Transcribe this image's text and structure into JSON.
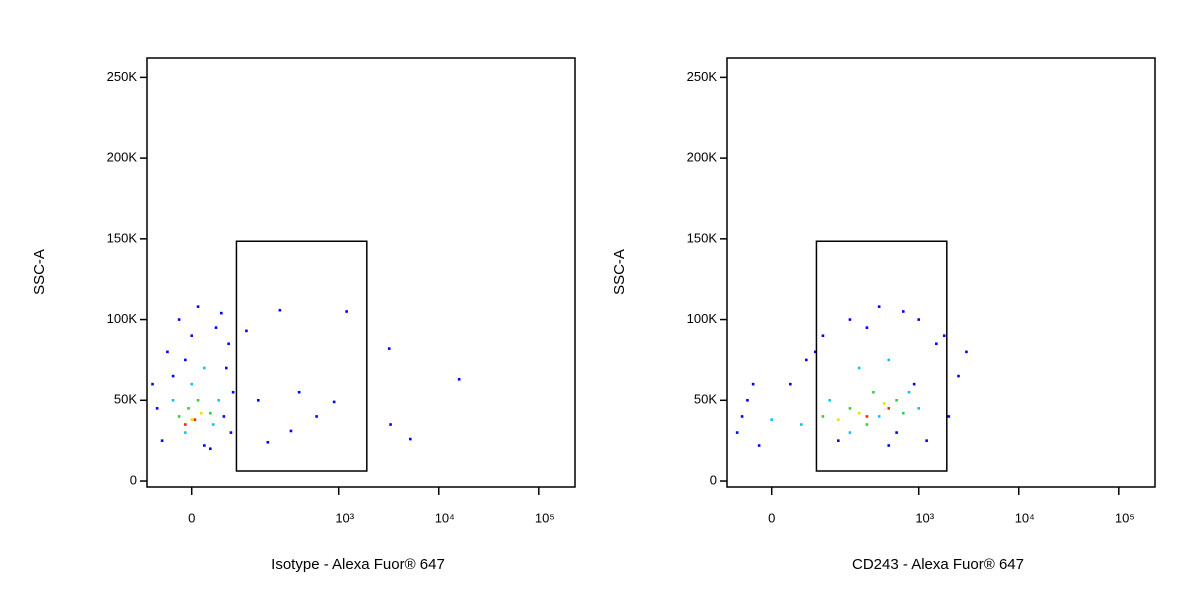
{
  "chart_data": [
    {
      "type": "scatter",
      "xlabel": "Isotype - Alexa Fuor® 647",
      "ylabel": "SSC-A",
      "xscale": "biexponential",
      "xlim": [
        -83,
        230000
      ],
      "ylim": [
        -3700,
        262000
      ],
      "xticks": [
        0,
        {
          "value": 1000,
          "label": "10³"
        },
        {
          "value": 10000,
          "label": "10⁴"
        },
        {
          "value": 100000,
          "label": "10⁵"
        }
      ],
      "yticks": [
        0,
        {
          "value": 50000,
          "label": "50K"
        },
        {
          "value": 100000,
          "label": "100K"
        },
        {
          "value": 150000,
          "label": "150K"
        },
        {
          "value": 200000,
          "label": "200K"
        },
        {
          "value": 250000,
          "label": "250K"
        }
      ],
      "gate": {
        "x": [
          83,
          1910
        ],
        "y": [
          6200,
          148500
        ]
      },
      "series": [
        {
          "color": "#0000ff",
          "x": [
            -60,
            -40,
            -20,
            10,
            40,
            60,
            75,
            -50,
            30,
            70,
            -70,
            0,
            50,
            -30,
            65,
            20,
            -10,
            55,
            254,
            1200,
            3200,
            16000,
            150,
            400,
            3300,
            5200,
            600,
            900,
            330,
            190,
            110
          ],
          "y": [
            45000,
            80000,
            100000,
            108000,
            95000,
            70000,
            55000,
            25000,
            20000,
            30000,
            60000,
            90000,
            104000,
            65000,
            85000,
            22000,
            75000,
            40000,
            105800,
            105000,
            82000,
            63000,
            50000,
            55000,
            35000,
            26000,
            40000,
            49000,
            31000,
            24000,
            93000
          ]
        },
        {
          "color": "#00c8ff",
          "x": [
            -30,
            20,
            45,
            -10,
            0,
            35
          ],
          "y": [
            50000,
            70000,
            50000,
            30000,
            60000,
            35000
          ]
        },
        {
          "color": "#30d040",
          "x": [
            -20,
            10,
            30,
            -5
          ],
          "y": [
            40000,
            50000,
            42000,
            45000
          ]
        },
        {
          "color": "#e8e000",
          "x": [
            0,
            15
          ],
          "y": [
            38000,
            42000
          ]
        },
        {
          "color": "#ff2000",
          "x": [
            -10,
            5
          ],
          "y": [
            35000,
            38000
          ]
        }
      ]
    },
    {
      "type": "scatter",
      "xlabel": "CD243 - Alexa Fuor® 647",
      "ylabel": "SSC-A",
      "xscale": "biexponential",
      "xlim": [
        -83,
        230000
      ],
      "ylim": [
        -3700,
        262000
      ],
      "xticks": [
        0,
        {
          "value": 1000,
          "label": "10³"
        },
        {
          "value": 10000,
          "label": "10⁴"
        },
        {
          "value": 100000,
          "label": "10⁵"
        }
      ],
      "yticks": [
        0,
        {
          "value": 50000,
          "label": "50K"
        },
        {
          "value": 100000,
          "label": "100K"
        },
        {
          "value": 150000,
          "label": "150K"
        },
        {
          "value": 200000,
          "label": "200K"
        },
        {
          "value": 250000,
          "label": "250K"
        }
      ],
      "gate": {
        "x": [
          83,
          1910
        ],
        "y": [
          6200,
          148500
        ]
      },
      "series": [
        {
          "color": "#0000ff",
          "x": [
            -60,
            -40,
            -20,
            30,
            60,
            100,
            200,
            400,
            700,
            1000,
            1500,
            2500,
            2000,
            1200,
            500,
            150,
            -50,
            80,
            300,
            900,
            1800,
            3000,
            -30,
            600
          ],
          "y": [
            30000,
            50000,
            22000,
            60000,
            75000,
            90000,
            100000,
            108000,
            105000,
            100000,
            85000,
            65000,
            40000,
            25000,
            22000,
            25000,
            40000,
            80000,
            95000,
            60000,
            90000,
            80000,
            60000,
            30000
          ]
        },
        {
          "color": "#00c8ff",
          "x": [
            50,
            120,
            250,
            500,
            800,
            1000,
            200,
            400,
            0
          ],
          "y": [
            35000,
            50000,
            70000,
            75000,
            55000,
            45000,
            30000,
            40000,
            38000
          ]
        },
        {
          "color": "#30d040",
          "x": [
            100,
            200,
            350,
            600,
            300,
            700
          ],
          "y": [
            40000,
            45000,
            55000,
            50000,
            35000,
            42000
          ]
        },
        {
          "color": "#e8e000",
          "x": [
            250,
            450,
            150
          ],
          "y": [
            42000,
            48000,
            38000
          ]
        },
        {
          "color": "#ff2000",
          "x": [
            300,
            500
          ],
          "y": [
            40000,
            45000
          ]
        }
      ]
    }
  ]
}
